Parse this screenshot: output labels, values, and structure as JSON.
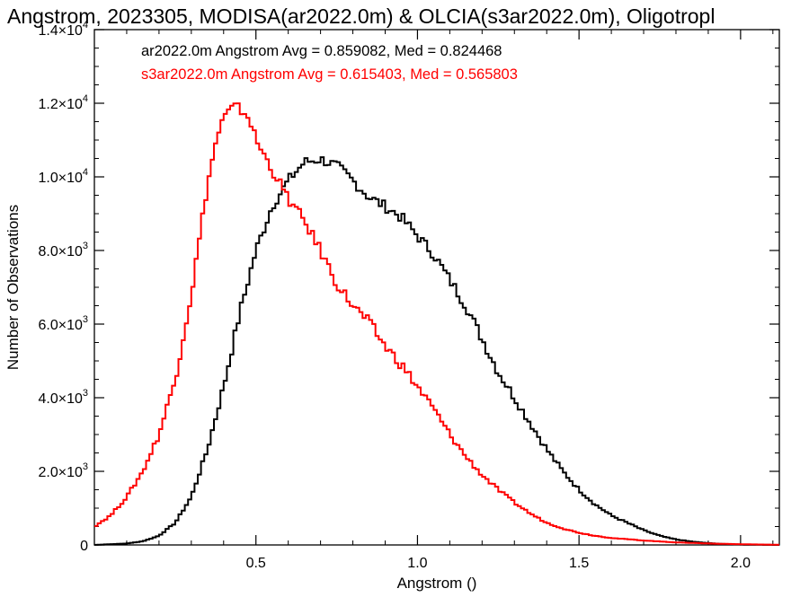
{
  "chart_data": {
    "type": "line",
    "step": true,
    "title": "Angstrom, 2023305, MODISA(ar2022.0m) & OLCIA(s3ar2022.0m), Oligotropl",
    "xlabel": "Angstrom ()",
    "ylabel": "Number of Observations",
    "xlim": [
      0.0,
      2.12
    ],
    "ylim": [
      0,
      14000
    ],
    "x_ticks": [
      {
        "value": 0.5,
        "label": "0.5"
      },
      {
        "value": 1.0,
        "label": "1.0"
      },
      {
        "value": 1.5,
        "label": "1.5"
      },
      {
        "value": 2.0,
        "label": "2.0"
      }
    ],
    "y_ticks": [
      {
        "value": 0,
        "mantissa": "0",
        "exp": ""
      },
      {
        "value": 2000,
        "mantissa": "2.0×10",
        "exp": "3"
      },
      {
        "value": 4000,
        "mantissa": "4.0×10",
        "exp": "3"
      },
      {
        "value": 6000,
        "mantissa": "6.0×10",
        "exp": "3"
      },
      {
        "value": 8000,
        "mantissa": "8.0×10",
        "exp": "3"
      },
      {
        "value": 10000,
        "mantissa": "1.0×10",
        "exp": "4"
      },
      {
        "value": 12000,
        "mantissa": "1.2×10",
        "exp": "4"
      },
      {
        "value": 14000,
        "mantissa": "1.4×10",
        "exp": "4"
      }
    ],
    "legend": [
      {
        "text": "ar2022.0m Angstrom Avg = 0.859082, Med = 0.824468",
        "color": "#000000"
      },
      {
        "text": "s3ar2022.0m Angstrom Avg = 0.615403, Med = 0.565803",
        "color": "#ff0000"
      }
    ],
    "legend_position": "top-left",
    "series": [
      {
        "color": "#000000",
        "points": [
          [
            0.0,
            0
          ],
          [
            0.1,
            40
          ],
          [
            0.15,
            100
          ],
          [
            0.2,
            250
          ],
          [
            0.25,
            600
          ],
          [
            0.3,
            1300
          ],
          [
            0.35,
            2600
          ],
          [
            0.4,
            4300
          ],
          [
            0.45,
            6300
          ],
          [
            0.5,
            8000
          ],
          [
            0.55,
            9200
          ],
          [
            0.6,
            9900
          ],
          [
            0.65,
            10400
          ],
          [
            0.7,
            10480
          ],
          [
            0.75,
            10300
          ],
          [
            0.8,
            9900
          ],
          [
            0.85,
            9450
          ],
          [
            0.9,
            9200
          ],
          [
            0.95,
            8900
          ],
          [
            1.0,
            8400
          ],
          [
            1.05,
            7900
          ],
          [
            1.1,
            7200
          ],
          [
            1.15,
            6500
          ],
          [
            1.2,
            5600
          ],
          [
            1.25,
            4700
          ],
          [
            1.3,
            4000
          ],
          [
            1.35,
            3300
          ],
          [
            1.4,
            2600
          ],
          [
            1.45,
            2000
          ],
          [
            1.5,
            1500
          ],
          [
            1.55,
            1100
          ],
          [
            1.6,
            800
          ],
          [
            1.65,
            600
          ],
          [
            1.7,
            400
          ],
          [
            1.75,
            250
          ],
          [
            1.8,
            150
          ],
          [
            1.85,
            90
          ],
          [
            1.9,
            50
          ],
          [
            1.95,
            25
          ],
          [
            2.0,
            10
          ],
          [
            2.05,
            5
          ],
          [
            2.12,
            0
          ]
        ]
      },
      {
        "color": "#ff0000",
        "points": [
          [
            0.0,
            500
          ],
          [
            0.05,
            800
          ],
          [
            0.1,
            1300
          ],
          [
            0.15,
            2000
          ],
          [
            0.2,
            3000
          ],
          [
            0.25,
            4500
          ],
          [
            0.3,
            6800
          ],
          [
            0.35,
            9800
          ],
          [
            0.38,
            11100
          ],
          [
            0.4,
            11600
          ],
          [
            0.43,
            11900
          ],
          [
            0.45,
            11850
          ],
          [
            0.48,
            11600
          ],
          [
            0.5,
            11000
          ],
          [
            0.55,
            10200
          ],
          [
            0.6,
            9400
          ],
          [
            0.65,
            8800
          ],
          [
            0.7,
            8000
          ],
          [
            0.75,
            7100
          ],
          [
            0.8,
            6500
          ],
          [
            0.85,
            6050
          ],
          [
            0.9,
            5400
          ],
          [
            0.95,
            4900
          ],
          [
            1.0,
            4300
          ],
          [
            1.05,
            3700
          ],
          [
            1.1,
            3000
          ],
          [
            1.15,
            2400
          ],
          [
            1.2,
            1900
          ],
          [
            1.25,
            1500
          ],
          [
            1.3,
            1150
          ],
          [
            1.35,
            850
          ],
          [
            1.4,
            600
          ],
          [
            1.45,
            450
          ],
          [
            1.5,
            330
          ],
          [
            1.55,
            250
          ],
          [
            1.6,
            190
          ],
          [
            1.7,
            120
          ],
          [
            1.8,
            70
          ],
          [
            1.9,
            40
          ],
          [
            2.0,
            20
          ],
          [
            2.12,
            5
          ]
        ]
      }
    ]
  }
}
